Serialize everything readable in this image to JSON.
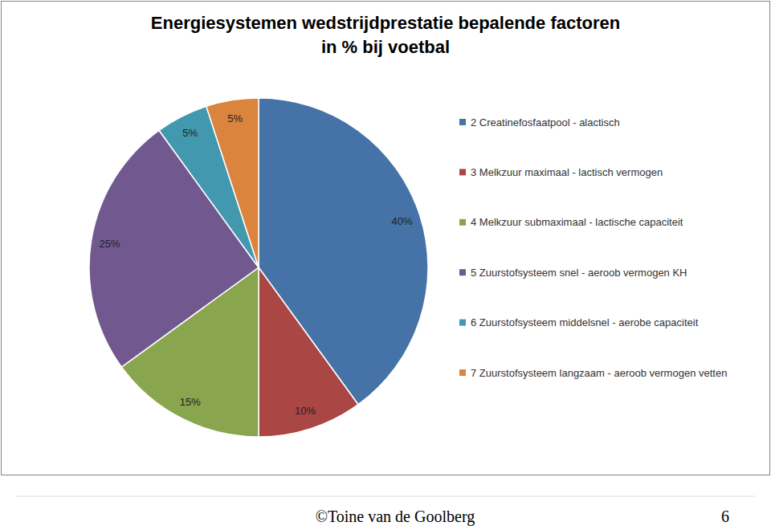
{
  "chart_data": {
    "type": "pie",
    "title": "Energiesystemen wedstrijdprestatie bepalende factoren\nin % bij voetbal",
    "categories": [
      "2 Creatinefosfaatpool - alactisch",
      "3 Melkzuur maximaal - lactisch vermogen",
      "4 Melkzuur submaximaal - lactische capaciteit",
      "5 Zuurstofsysteem snel - aeroob vermogen KH",
      "6 Zuurstofsysteem middelsnel - aerobe capaciteit",
      "7 Zuurstofsysteem langzaam - aeroob vermogen vetten"
    ],
    "values": [
      40,
      10,
      15,
      25,
      5,
      5
    ],
    "value_labels": [
      "40%",
      "10%",
      "15%",
      "25%",
      "5%",
      "5%"
    ],
    "colors": [
      "#4572A7",
      "#AA4643",
      "#89A54E",
      "#71588F",
      "#4198AF",
      "#DB843D"
    ],
    "data_labels": true,
    "legend": "right"
  },
  "footer": {
    "credit": "©Toine van de Goolberg",
    "page_number": 6
  }
}
